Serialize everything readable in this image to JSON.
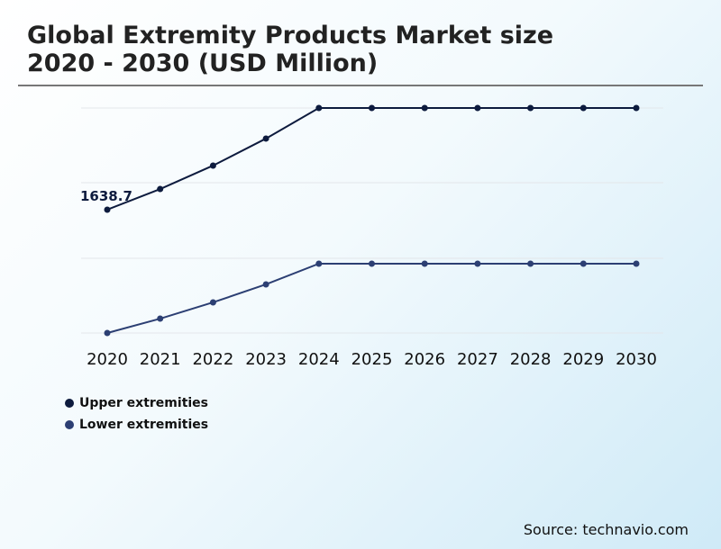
{
  "title_line1": "Global Extremity Products Market size",
  "title_line2": "2020 - 2030 (USD Million)",
  "source": "Source: technavio.com",
  "chart_data": {
    "type": "line",
    "categories": [
      "2020",
      "2021",
      "2022",
      "2023",
      "2024",
      "2025",
      "2026",
      "2027",
      "2028",
      "2029",
      "2030"
    ],
    "series": [
      {
        "name": "Upper extremities",
        "color": "#0d1b3e",
        "values": [
          1638.7,
          1913,
          2225,
          2584,
          2990,
          2990,
          2990,
          2990,
          2990,
          2990,
          2990
        ]
      },
      {
        "name": "Lower extremities",
        "color": "#2c3f73",
        "values": [
          0,
          191,
          407,
          646,
          921,
          921,
          921,
          921,
          921,
          921,
          921
        ]
      }
    ],
    "annotations": [
      {
        "series": 0,
        "index": 0,
        "label": "1638.7"
      }
    ],
    "ylim": [
      0,
      2990
    ],
    "grid": true,
    "y_axis_labels": false,
    "legend": "bottom-left"
  }
}
